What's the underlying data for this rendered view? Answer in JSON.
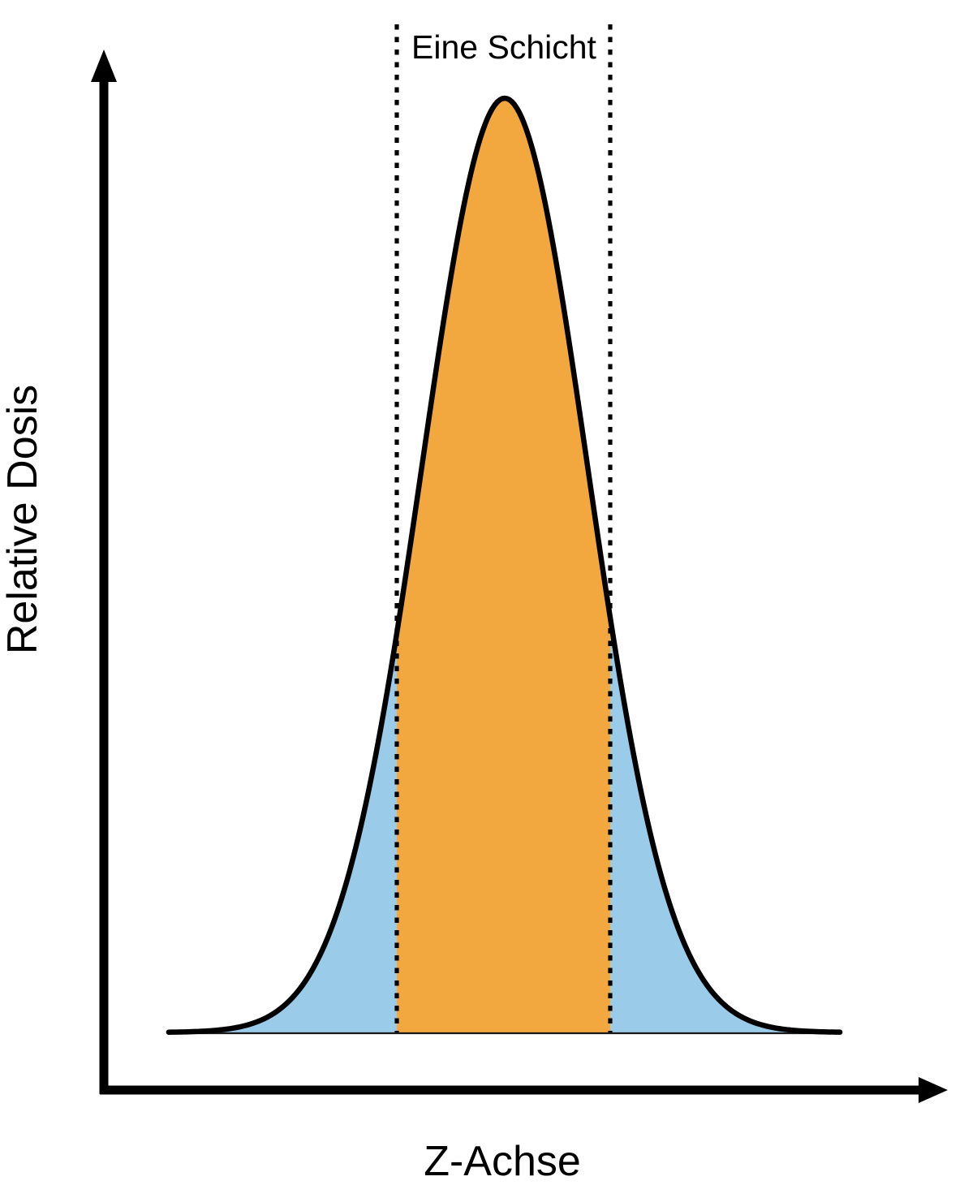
{
  "title": {
    "label": "Eine Schicht"
  },
  "axes": {
    "x_label": "Z-Achse",
    "y_label": "Relative Dosis"
  },
  "colors": {
    "slice_fill": "#F2A83E",
    "penumbra_fill": "#9ACBE8",
    "curve": "#000000",
    "axis": "#000000",
    "boundary": "#000000",
    "baseline": "#1a1a1a"
  },
  "chart_data": {
    "type": "area",
    "title": "Eine Schicht",
    "xlabel": "Z-Achse",
    "ylabel": "Relative Dosis",
    "grid": false,
    "xticks": [],
    "yticks": [],
    "curve": {
      "shape": "gaussian",
      "mu": 0,
      "sigma": 1,
      "peak": 1.0,
      "x_range": [
        -4.06,
        4.05
      ]
    },
    "slice_region": {
      "label": "Eine Schicht",
      "from_sigma": -1.304,
      "to_sigma": 1.275,
      "boundary_style": "dotted"
    },
    "regions_legend": [
      {
        "name": "inside-slice",
        "color": "#F2A83E"
      },
      {
        "name": "outside-slice",
        "color": "#9ACBE8"
      }
    ]
  }
}
